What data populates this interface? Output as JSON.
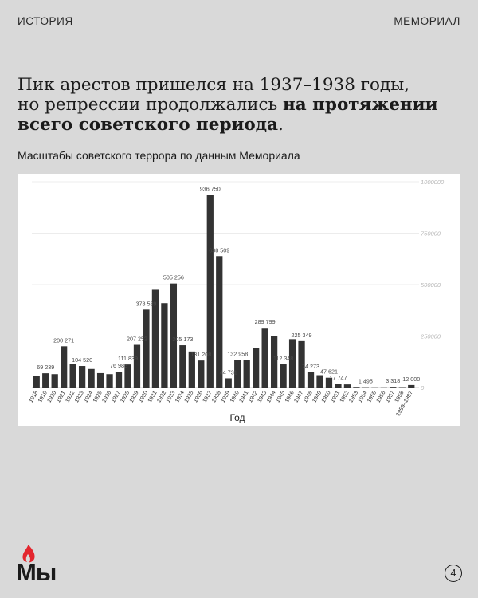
{
  "header": {
    "section": "ИСТОРИЯ",
    "brand": "МЕМОРИАЛ"
  },
  "headline": {
    "line1": "Пик арестов пришелся на 1937–1938 годы,",
    "line2_prefix": "но репрессии продолжались ",
    "line2_bold": "на протяжении",
    "line3_bold": "всего советского периода",
    "line3_suffix": "."
  },
  "subtitle": "Масштабы советского террора по данным Мемориала",
  "footer": {
    "logo_text": "Мы",
    "page_number": "4"
  },
  "colors": {
    "background": "#d9d9d9",
    "bar": "#333333",
    "logo_flame": "#e3262e",
    "panel": "#ffffff"
  },
  "chart_data": {
    "type": "bar",
    "categories": [
      "1918",
      "1919",
      "1920",
      "1921",
      "1922",
      "1923",
      "1924",
      "1925",
      "1926",
      "1927",
      "1928",
      "1929",
      "1930",
      "1931",
      "1932",
      "1933",
      "1934",
      "1935",
      "1936",
      "1937",
      "1938",
      "1939",
      "1940",
      "1941",
      "1942",
      "1943",
      "1944",
      "1945",
      "1946",
      "1947",
      "1948",
      "1949",
      "1950",
      "1951",
      "1952",
      "1953",
      "1954",
      "1955",
      "1956",
      "1957",
      "1958",
      "1959–1987"
    ],
    "values": [
      58000,
      69239,
      65000,
      200271,
      115000,
      104520,
      90000,
      70000,
      65000,
      76983,
      111839,
      207252,
      378539,
      475000,
      410000,
      505256,
      205173,
      175000,
      131208,
      936750,
      638509,
      44731,
      132958,
      135000,
      190000,
      289799,
      250000,
      112348,
      235000,
      225349,
      74273,
      60000,
      47621,
      17747,
      15000,
      3000,
      1495,
      1000,
      1000,
      3318,
      2000,
      12000
    ],
    "value_labels": [
      "",
      "69 239",
      "",
      "200 271",
      "",
      "104 520",
      "",
      "",
      "",
      "76 983",
      "111 839",
      "207 252",
      "378 539",
      "",
      "",
      "505 256",
      "205 173",
      "",
      "131 208",
      "936 750",
      "638 509",
      "44 731",
      "132 958",
      "",
      "",
      "289 799",
      "",
      "112 348",
      "",
      "225 349",
      "74 273",
      "",
      "47 621",
      "17 747",
      "",
      "",
      "1 495",
      "",
      "",
      "3 318",
      "",
      "12 000"
    ],
    "xlabel": "Год",
    "ylabel": "",
    "ylim": [
      0,
      1000000
    ],
    "yticks": [
      0,
      250000,
      500000,
      750000,
      1000000
    ],
    "ytick_labels": [
      "0",
      "250000",
      "500000",
      "750000",
      "1000000"
    ],
    "y_axis_position": "right",
    "grid": true
  }
}
